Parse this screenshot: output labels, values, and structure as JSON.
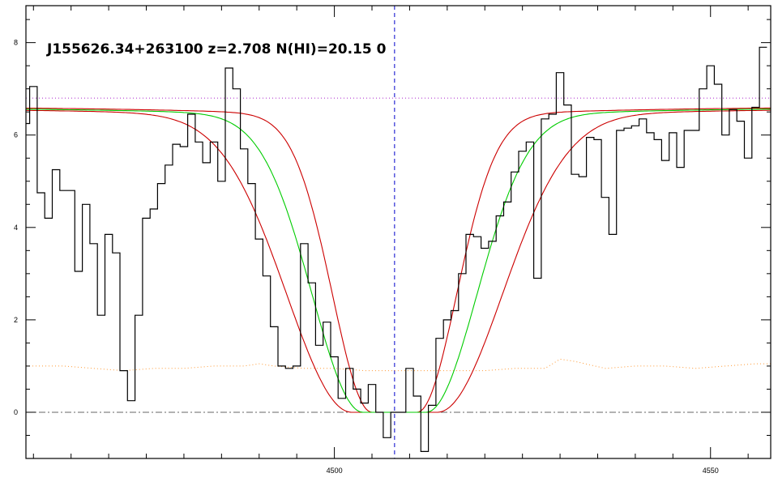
{
  "chart_data": {
    "type": "line",
    "title": "J155626.34+263100 z=2.708 N(HI)=20.15 0",
    "xlabel": "",
    "ylabel": "",
    "xlim": [
      4459,
      4558
    ],
    "ylim": [
      -1.0,
      8.8
    ],
    "x_ticks": [
      4500,
      4550
    ],
    "y_ticks": [
      0,
      2,
      4,
      6,
      8
    ],
    "grid": false,
    "legend": "none",
    "line_center_x": 4508,
    "continuum_level": 6.8,
    "zero_level": 0,
    "colors": {
      "spectrum": "#000000",
      "fit": "#00cc00",
      "fit_bounds": "#cc0000",
      "continuum": "#aa22cc",
      "error": "#ff9933",
      "center_line": "#0000cc",
      "zero_line": "#666666"
    },
    "fit_model": {
      "center": 4508,
      "continuum_start": 6.62,
      "continuum_end": 6.62,
      "core_halfwidth_best": 4.2,
      "core_halfwidth_upper": 5.7,
      "core_halfwidth_lower": 3.0,
      "wing_width_best": 9.0,
      "wing_width_upper": 11.5,
      "wing_width_lower": 7.0
    },
    "series": [
      {
        "name": "flux",
        "x": [
          4459.0,
          4460.0,
          4461.0,
          4462.0,
          4463.0,
          4464.0,
          4465.0,
          4466.0,
          4467.0,
          4468.0,
          4469.0,
          4470.0,
          4471.0,
          4472.0,
          4473.0,
          4474.0,
          4475.0,
          4476.0,
          4477.0,
          4478.0,
          4479.0,
          4480.0,
          4481.0,
          4482.0,
          4483.0,
          4484.0,
          4485.0,
          4486.0,
          4487.0,
          4488.0,
          4489.0,
          4490.0,
          4491.0,
          4492.0,
          4493.0,
          4494.0,
          4495.0,
          4496.0,
          4497.0,
          4498.0,
          4499.0,
          4500.0,
          4501.0,
          4502.0,
          4503.0,
          4504.0,
          4505.0,
          4506.0,
          4507.0,
          4508.0,
          4509.0,
          4510.0,
          4511.0,
          4512.0,
          4513.0,
          4514.0,
          4515.0,
          4516.0,
          4517.0,
          4518.0,
          4519.0,
          4520.0,
          4521.0,
          4522.0,
          4523.0,
          4524.0,
          4525.0,
          4526.0,
          4527.0,
          4528.0,
          4529.0,
          4530.0,
          4531.0,
          4532.0,
          4533.0,
          4534.0,
          4535.0,
          4536.0,
          4537.0,
          4538.0,
          4539.0,
          4540.0,
          4541.0,
          4542.0,
          4543.0,
          4544.0,
          4545.0,
          4546.0,
          4547.0,
          4548.0,
          4549.0,
          4550.0,
          4551.0,
          4552.0,
          4553.0,
          4554.0,
          4555.0,
          4556.0,
          4557.0
        ],
        "values": [
          6.25,
          7.05,
          4.75,
          4.2,
          5.25,
          4.8,
          4.8,
          3.05,
          4.5,
          3.65,
          2.1,
          3.85,
          3.45,
          0.9,
          0.25,
          2.1,
          4.2,
          4.4,
          4.95,
          5.35,
          5.8,
          5.75,
          6.45,
          5.85,
          5.4,
          5.85,
          5.0,
          7.45,
          7.0,
          5.7,
          4.95,
          3.75,
          2.95,
          1.85,
          1.0,
          0.95,
          1.0,
          3.65,
          2.8,
          1.45,
          1.95,
          1.2,
          0.3,
          0.95,
          0.5,
          0.2,
          0.6,
          0.0,
          -0.55,
          0.0,
          0.0,
          0.95,
          0.35,
          -0.85,
          0.15,
          1.6,
          2.0,
          2.2,
          3.0,
          3.85,
          3.8,
          3.55,
          3.7,
          4.25,
          4.55,
          5.2,
          5.65,
          5.85,
          2.9,
          6.35,
          6.45,
          7.35,
          6.65,
          5.15,
          5.1,
          5.95,
          5.9,
          4.65,
          3.85,
          6.1,
          6.15,
          6.2,
          6.35,
          6.05,
          5.9,
          5.45,
          6.05,
          5.3,
          6.1,
          6.1,
          7.0,
          7.5,
          7.1,
          6.0,
          6.55,
          6.3,
          5.5,
          6.6,
          7.9
        ]
      },
      {
        "name": "error",
        "x": [
          4459,
          4464,
          4468,
          4472,
          4476,
          4480,
          4484,
          4488,
          4490,
          4492,
          4496,
          4500,
          4504,
          4508,
          4512,
          4516,
          4520,
          4524,
          4528,
          4530,
          4532,
          4536,
          4540,
          4544,
          4548,
          4552,
          4556,
          4558
        ],
        "values": [
          1.0,
          1.0,
          0.95,
          0.9,
          0.95,
          0.95,
          1.0,
          1.0,
          1.05,
          1.0,
          0.95,
          0.95,
          0.9,
          0.9,
          0.9,
          0.9,
          0.9,
          0.95,
          0.95,
          1.15,
          1.1,
          0.95,
          1.0,
          1.0,
          0.95,
          1.0,
          1.05,
          1.05
        ]
      }
    ]
  }
}
